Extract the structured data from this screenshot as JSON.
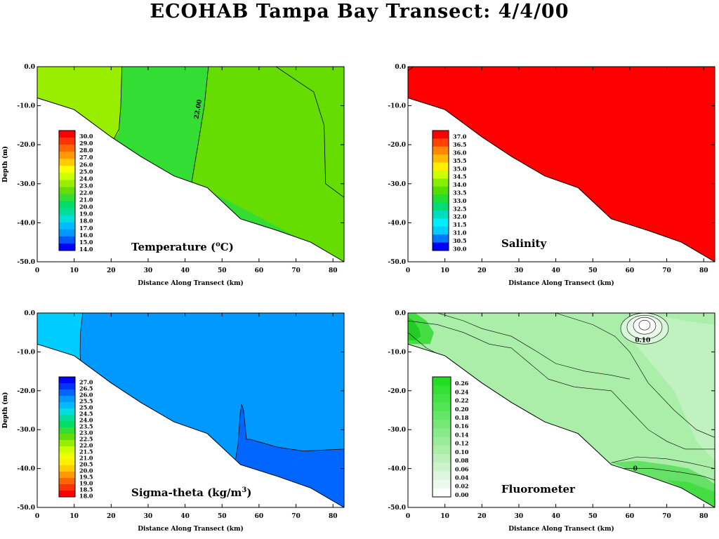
{
  "title": "ECOHAB Tampa Bay Transect: 4/4/00",
  "panels": [
    {
      "id": "temperature",
      "label_parts": [
        "Temperature (",
        "o",
        "C)"
      ],
      "legend": {
        "labels": [
          "30.0",
          "29.0",
          "28.0",
          "27.0",
          "26.0",
          "25.0",
          "24.0",
          "23.0",
          "22.0",
          "21.0",
          "20.0",
          "19.0",
          "18.0",
          "17.0",
          "16.0",
          "15.0",
          "14.0"
        ],
        "colors": [
          "#ff0000",
          "#ff3300",
          "#ff6600",
          "#ff9900",
          "#ffcc00",
          "#ffff00",
          "#ccff00",
          "#99ee00",
          "#66dd00",
          "#33dd33",
          "#00dd66",
          "#00dd99",
          "#00dddd",
          "#00bbff",
          "#0099ff",
          "#0055ff",
          "#0000ff"
        ]
      },
      "contour_labels": [
        "22.00"
      ]
    },
    {
      "id": "salinity",
      "label_parts": [
        "Salinity"
      ],
      "legend": {
        "labels": [
          "37.0",
          "36.5",
          "36.0",
          "35.5",
          "35.0",
          "34.5",
          "34.0",
          "33.5",
          "33.0",
          "32.5",
          "32.0",
          "31.5",
          "31.0",
          "30.5",
          "30.0"
        ],
        "colors": [
          "#ff0000",
          "#ff4400",
          "#ff8800",
          "#ffbb00",
          "#ffee00",
          "#ccff00",
          "#88ee00",
          "#55dd00",
          "#22dd33",
          "#00dd77",
          "#00ddbb",
          "#00eeff",
          "#00ccff",
          "#0077ff",
          "#0000ff"
        ]
      },
      "contour_labels": []
    },
    {
      "id": "sigma-theta",
      "label_parts": [
        "Sigma-theta  (kg/m",
        "3",
        ")"
      ],
      "legend": {
        "labels": [
          "27.0",
          "26.5",
          "26.0",
          "25.5",
          "25.0",
          "24.5",
          "24.0",
          "23.5",
          "23.0",
          "22.5",
          "22.0",
          "21.5",
          "21.0",
          "20.5",
          "20.0",
          "19.5",
          "19.0",
          "18.5",
          "18.0"
        ],
        "colors": [
          "#0000ff",
          "#0033ff",
          "#0066ff",
          "#0099ff",
          "#00bbff",
          "#00dddd",
          "#00dd99",
          "#00dd66",
          "#33dd33",
          "#66dd00",
          "#99ee00",
          "#ccff00",
          "#eeff00",
          "#ffee00",
          "#ffcc00",
          "#ff9900",
          "#ff6600",
          "#ff3300",
          "#ff0000"
        ]
      },
      "contour_labels": []
    },
    {
      "id": "fluorometer",
      "label_parts": [
        "Fluorometer"
      ],
      "legend": {
        "labels": [
          "0.26",
          "0.24",
          "0.22",
          "0.20",
          "0.18",
          "0.16",
          "0.14",
          "0.12",
          "0.10",
          "0.08",
          "0.06",
          "0.04",
          "0.02",
          "0.00"
        ],
        "colors": [
          "#22dd22",
          "#33e033",
          "#44e244",
          "#55e455",
          "#66e666",
          "#77e877",
          "#88ea88",
          "#99ec99",
          "#aaeeaa",
          "#bbf0bb",
          "#ccf3cc",
          "#ddf6dd",
          "#eef9ee",
          "#ffffff"
        ]
      },
      "contour_labels": [
        "0.10",
        "0"
      ]
    }
  ],
  "x_axis": {
    "label": "Distance Along Transect (km)",
    "ticks": [
      "0",
      "10",
      "20",
      "30",
      "40",
      "50",
      "60",
      "70",
      "80"
    ]
  },
  "y_axis": {
    "label": "Depth (m)",
    "ticks": [
      "0.0",
      "-10.0",
      "-20.0",
      "-30.0",
      "-40.0",
      "-50.0"
    ]
  },
  "chart_data": [
    {
      "type": "heatmap",
      "title": "Temperature (oC)",
      "xlabel": "Distance Along Transect (km)",
      "ylabel": "Depth (m)",
      "xlim": [
        0,
        83
      ],
      "ylim": [
        -50,
        0
      ],
      "colors": {
        "water_west": "#99ee00",
        "water_mid": "#66dd00",
        "water_east": "#33dd33"
      },
      "bottom_profile": {
        "x": [
          0,
          10,
          20,
          28,
          37,
          46,
          55,
          65,
          74,
          83
        ],
        "depth": [
          -8,
          -11,
          -18,
          -23,
          -28,
          -31,
          -39,
          -42,
          -45,
          -50
        ]
      },
      "boundaries": [
        {
          "x": [
            22.9,
            22.6,
            22.0,
            21.4,
            20.8,
            20.5
          ],
          "depth": [
            0,
            -10,
            -20,
            -25,
            -30,
            -19
          ]
        },
        {
          "x": [
            46.3,
            45.2,
            43.5,
            42.6,
            41.8
          ],
          "depth": [
            0,
            -10,
            -20,
            -25,
            -29.5
          ]
        },
        {
          "x": [
            64.6,
            68.5,
            74.8,
            77.6,
            78.0,
            83
          ],
          "depth": [
            0,
            -2.5,
            -6.5,
            -15,
            -30,
            -33.5
          ]
        }
      ],
      "contour_label": {
        "text": "22.00",
        "x": 44,
        "depth": -11
      }
    },
    {
      "type": "heatmap",
      "title": "Salinity",
      "xlabel": "Distance Along Transect (km)",
      "ylabel": "Depth (m)",
      "xlim": [
        0,
        83
      ],
      "ylim": [
        -50,
        0
      ],
      "colors": {
        "water": "#ff0000"
      },
      "bottom_profile": {
        "x": [
          0,
          10,
          20,
          28,
          37,
          46,
          55,
          65,
          74,
          83
        ],
        "depth": [
          -8,
          -11,
          -18,
          -23,
          -28,
          -31,
          -39,
          -42,
          -45,
          -50
        ]
      },
      "boundaries": [
        {
          "x": [
            0,
            1.5
          ],
          "depth": [
            -1,
            0
          ]
        }
      ]
    },
    {
      "type": "heatmap",
      "title": "Sigma-theta (kg/m3)",
      "xlabel": "Distance Along Transect (km)",
      "ylabel": "Depth (m)",
      "xlim": [
        0,
        83
      ],
      "ylim": [
        -50,
        0
      ],
      "colors": {
        "water_west": "#00ccff",
        "water_main": "#0099ff",
        "water_deep": "#0066ff"
      },
      "bottom_profile": {
        "x": [
          0,
          10,
          20,
          28,
          37,
          46,
          55,
          65,
          74,
          83
        ],
        "depth": [
          -8,
          -11,
          -18,
          -23,
          -28,
          -31,
          -39,
          -42,
          -45,
          -50
        ]
      },
      "boundaries": [
        {
          "x": [
            12.3,
            11.7,
            11.6,
            11.8,
            11.5,
            10.6
          ],
          "depth": [
            0,
            -5,
            -10,
            -15,
            -20,
            -12
          ]
        },
        {
          "x": [
            53.7,
            54.3,
            54.9,
            55.3,
            55.8,
            56.6,
            57.6,
            65.0,
            72.0,
            83
          ],
          "depth": [
            -37.5,
            -34,
            -26,
            -23.5,
            -25,
            -32.5,
            -32.5,
            -34.5,
            -35.5,
            -35
          ]
        }
      ]
    },
    {
      "type": "heatmap",
      "title": "Fluorometer",
      "xlabel": "Distance Along Transect (km)",
      "ylabel": "Depth (m)",
      "xlim": [
        0,
        83
      ],
      "ylim": [
        -50,
        0
      ],
      "colors": {
        "water": "#aaeeaa",
        "high": "#22dd22",
        "low": "#ffffff"
      },
      "bottom_profile": {
        "x": [
          0,
          10,
          20,
          28,
          37,
          46,
          55,
          65,
          74,
          83
        ],
        "depth": [
          -8,
          -11,
          -18,
          -23,
          -28,
          -31,
          -39,
          -42,
          -45,
          -50
        ]
      },
      "contour_labels": [
        {
          "text": "0.10",
          "x": 63.5,
          "depth": -7.5
        },
        {
          "text": "0",
          "x": 61.5,
          "depth": -40.5
        }
      ]
    }
  ]
}
